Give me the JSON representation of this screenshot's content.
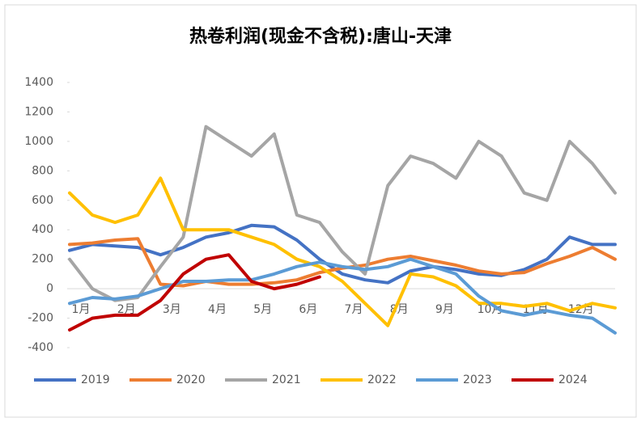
{
  "chart_data": {
    "type": "line",
    "title": "热卷利润(现金不含税):唐山-天津",
    "categories": [
      "1月",
      null,
      "2月",
      null,
      "3月",
      null,
      "4月",
      null,
      "5月",
      null,
      "6月",
      null,
      "7月",
      null,
      "8月",
      null,
      "9月",
      null,
      "10月",
      null,
      "11月",
      null,
      "12月",
      null,
      null
    ],
    "series": [
      {
        "name": "2019",
        "color": "#4472c4",
        "values": [
          260,
          300,
          290,
          280,
          230,
          280,
          350,
          380,
          430,
          420,
          330,
          200,
          100,
          60,
          40,
          120,
          150,
          130,
          100,
          90,
          130,
          200,
          350,
          300,
          300
        ]
      },
      {
        "name": "2020",
        "color": "#ed7d31",
        "values": [
          300,
          310,
          330,
          340,
          30,
          20,
          50,
          30,
          30,
          40,
          60,
          110,
          140,
          160,
          200,
          220,
          190,
          160,
          120,
          100,
          110,
          170,
          220,
          280,
          200
        ]
      },
      {
        "name": "2021",
        "color": "#a5a5a5",
        "values": [
          200,
          0,
          -80,
          -60,
          150,
          350,
          1100,
          1000,
          900,
          1050,
          500,
          450,
          250,
          100,
          700,
          900,
          850,
          750,
          1000,
          900,
          650,
          600,
          1000,
          850,
          650
        ]
      },
      {
        "name": "2022",
        "color": "#ffc000",
        "values": [
          650,
          500,
          450,
          500,
          750,
          400,
          400,
          400,
          350,
          300,
          200,
          150,
          50,
          -100,
          -250,
          100,
          80,
          20,
          -100,
          -100,
          -120,
          -100,
          -150,
          -100,
          -130
        ]
      },
      {
        "name": "2023",
        "color": "#5b9bd5",
        "values": [
          -100,
          -60,
          -70,
          -50,
          0,
          50,
          50,
          60,
          60,
          100,
          150,
          180,
          150,
          130,
          150,
          200,
          150,
          100,
          -50,
          -150,
          -180,
          -150,
          -180,
          -200,
          -300
        ]
      },
      {
        "name": "2024",
        "color": "#c00000",
        "values": [
          -280,
          -200,
          -180,
          -180,
          -80,
          100,
          200,
          230,
          50,
          0,
          30,
          80,
          null,
          null,
          null,
          null,
          null,
          null,
          null,
          null,
          null,
          null,
          null,
          null,
          null
        ]
      }
    ],
    "ylim": [
      -400,
      1400
    ],
    "yticks": [
      -400,
      -200,
      0,
      200,
      400,
      600,
      800,
      1000,
      1200,
      1400
    ],
    "legend": "bottom"
  }
}
